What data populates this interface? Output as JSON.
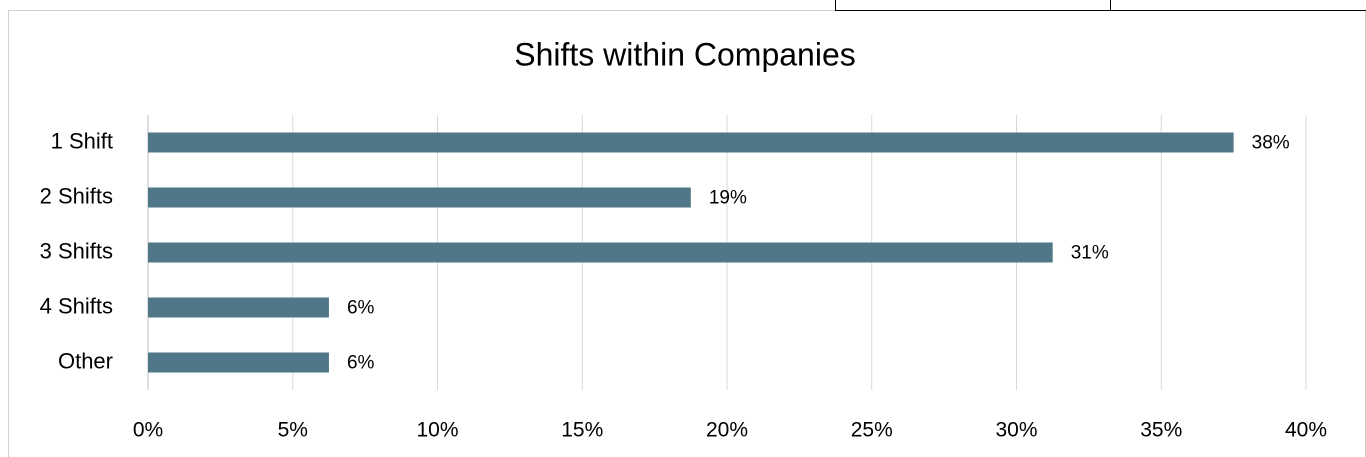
{
  "chart_data": {
    "type": "bar",
    "orientation": "horizontal",
    "title": "Shifts within Companies",
    "categories": [
      "1 Shift",
      "2 Shifts",
      "3 Shifts",
      "4 Shifts",
      "Other"
    ],
    "values": [
      37.5,
      18.75,
      31.25,
      6.25,
      6.25
    ],
    "value_labels": [
      "38%",
      "19%",
      "31%",
      "6%",
      "6%"
    ],
    "color": "#4f7787",
    "xlim": [
      0,
      40
    ],
    "xticks": [
      {
        "value": 0,
        "label": "0%"
      },
      {
        "value": 5,
        "label": "5%"
      },
      {
        "value": 10,
        "label": "10%"
      },
      {
        "value": 15,
        "label": "15%"
      },
      {
        "value": 20,
        "label": "20%"
      },
      {
        "value": 25,
        "label": "25%"
      },
      {
        "value": 30,
        "label": "30%"
      },
      {
        "value": 35,
        "label": "35%"
      },
      {
        "value": 40,
        "label": "40%"
      }
    ],
    "grid": true
  }
}
